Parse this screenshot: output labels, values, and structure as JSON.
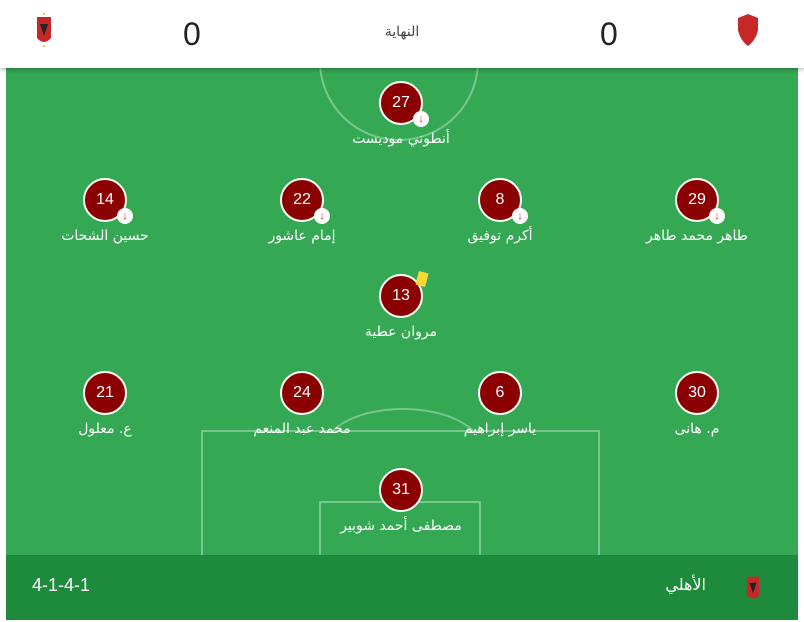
{
  "header": {
    "home_score": "0",
    "away_score": "0",
    "status": "النهاية",
    "home_logo_icon": "al-ahly-crest-icon",
    "away_logo_icon": "red-shield-crest-icon"
  },
  "players": [
    {
      "number": "27",
      "name": "أنطوني موديست",
      "subbed_off": true,
      "yellow_card": false
    },
    {
      "number": "14",
      "name": "حسين الشحات",
      "subbed_off": true,
      "yellow_card": false
    },
    {
      "number": "22",
      "name": "إمام عاشور",
      "subbed_off": true,
      "yellow_card": false
    },
    {
      "number": "8",
      "name": "أكرم توفيق",
      "subbed_off": true,
      "yellow_card": false
    },
    {
      "number": "29",
      "name": "طاهر محمد طاهر",
      "subbed_off": true,
      "yellow_card": false
    },
    {
      "number": "13",
      "name": "مروان عطية",
      "subbed_off": false,
      "yellow_card": true
    },
    {
      "number": "21",
      "name": "ع. معلول",
      "subbed_off": false,
      "yellow_card": false
    },
    {
      "number": "24",
      "name": "محمد عبد المنعم",
      "subbed_off": false,
      "yellow_card": false
    },
    {
      "number": "6",
      "name": "ياسر إبراهيم",
      "subbed_off": false,
      "yellow_card": false
    },
    {
      "number": "30",
      "name": "م. هانى",
      "subbed_off": false,
      "yellow_card": false
    },
    {
      "number": "31",
      "name": "مصطفى أحمد شوبير",
      "subbed_off": false,
      "yellow_card": false
    }
  ],
  "footer": {
    "formation": "4-1-4-1",
    "team_name": "الأهلي"
  },
  "colors": {
    "pitch": "#34a853",
    "footer": "#1e8a3c",
    "player_disc": "#8b0000",
    "yellow_card": "#fdd835",
    "sub_arrow": "#d93025"
  }
}
